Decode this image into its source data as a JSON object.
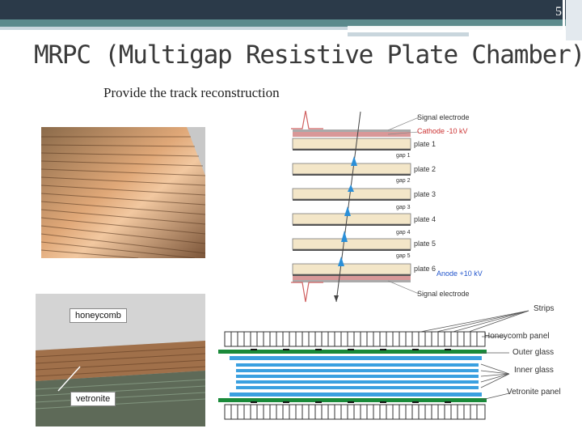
{
  "slide": {
    "number": "5"
  },
  "title": "MRPC (Multigap Resistive Plate Chamber)",
  "subtitle": "Provide the track reconstruction",
  "mrpc_diagram": {
    "signal_electrode_top": "Signal electrode",
    "cathode": "Cathode -10 kV",
    "plates": [
      "plate 1",
      "plate 2",
      "plate 3",
      "plate 4",
      "plate 5",
      "plate 6"
    ],
    "gaps": [
      "gap 1",
      "gap 2",
      "gap 3",
      "gap 4",
      "gap 5"
    ],
    "anode": "Anode +10 kV",
    "signal_electrode_bottom": "Signal electrode"
  },
  "photo_labels": {
    "honeycomb": "honeycomb",
    "vetronite": "vetronite"
  },
  "cross_section": {
    "labels": [
      "Strips",
      "Honeycomb panel",
      "Outer glass",
      "Inner glass",
      "Vetronite panel"
    ]
  },
  "colors": {
    "header_dark": "#2b3a49",
    "header_teal": "#5b8a8c",
    "title_text": "#3a3a3a",
    "glass_blue": "#3aa0e0",
    "outer_green": "#1a8a3a"
  }
}
